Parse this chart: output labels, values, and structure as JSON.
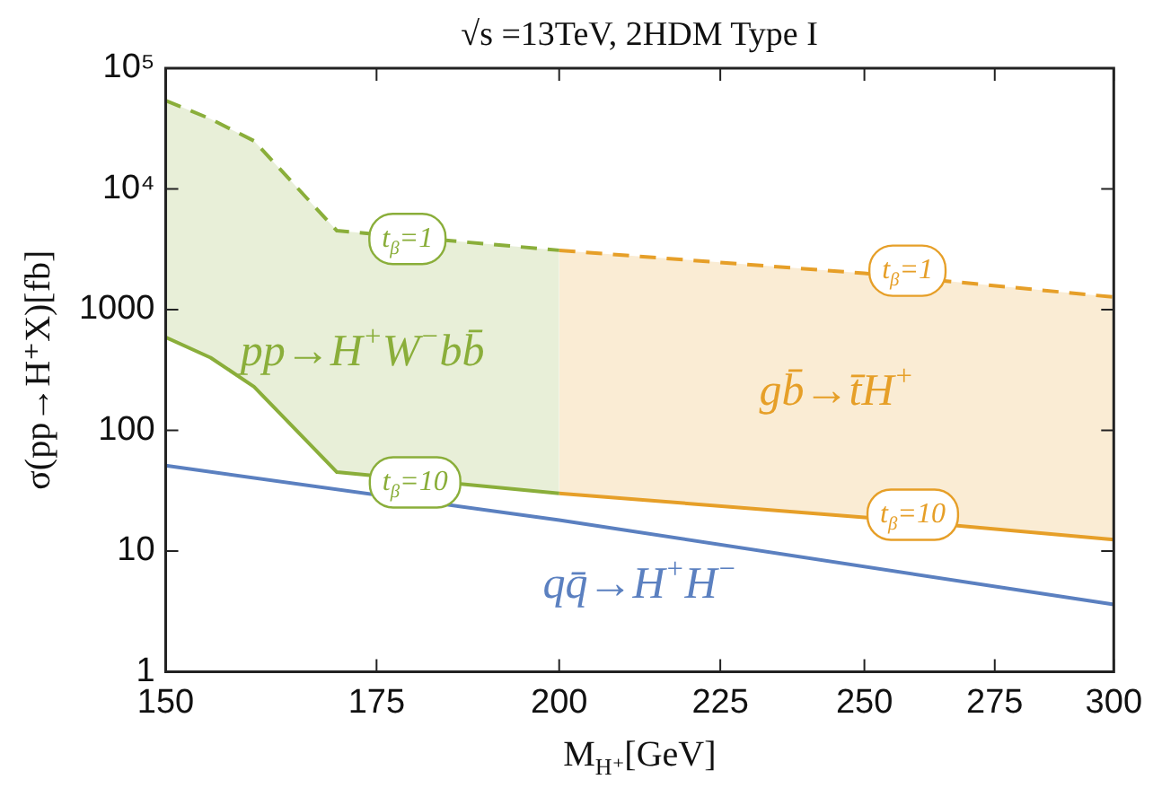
{
  "chart_data": {
    "type": "line",
    "title": "√s =13TeV, 2HDM Type I",
    "xlabel": "M$_{H⁺}$[GeV]",
    "ylabel": "σ(pp→H⁺X)[fb]",
    "log": "xy",
    "grid": false,
    "legend": false,
    "marker": "none",
    "xlim": [
      150,
      300
    ],
    "xticks": [
      150,
      175,
      200,
      225,
      250,
      275,
      300
    ],
    "ylim": [
      1,
      100000
    ],
    "yticks": [
      {
        "value": 100000,
        "label": "10⁵"
      },
      {
        "value": 10000,
        "label": "10⁴"
      },
      1000,
      100,
      10,
      1
    ],
    "series": [
      {
        "name": "pp→H$^{+}$W$^{−}$bb̄",
        "color": "#8aae3a",
        "line_style": "dashed",
        "x": [
          150,
          155,
          160,
          170,
          200
        ],
        "values": [
          54000,
          38000,
          25000,
          4500,
          3100
        ],
        "lower": [
          590,
          400,
          230,
          45,
          30
        ],
        "upper": [
          54000,
          38000,
          25000,
          4500,
          3100
        ]
      },
      {
        "color": "#8aae3a",
        "line_style": "solid",
        "x": [
          150,
          155,
          160,
          170,
          200
        ],
        "values": [
          590,
          400,
          230,
          45,
          30
        ]
      },
      {
        "name": "gb̄→t̄H$^{+}$",
        "color": "#e69f28",
        "line_style": "dashed",
        "x": [
          200,
          250,
          300
        ],
        "values": [
          3100,
          2000,
          1270
        ],
        "lower": [
          30,
          19,
          12.4
        ],
        "upper": [
          3100,
          2000,
          1270
        ]
      },
      {
        "color": "#e69f28",
        "line_style": "solid",
        "x": [
          200,
          250,
          300
        ],
        "values": [
          30,
          19,
          12.4
        ]
      },
      {
        "name": "qq̄→H$^{+}$H$^{−}$",
        "color": "#5b80c0",
        "line_style": "solid",
        "x": [
          150,
          200,
          300
        ],
        "values": [
          51,
          18,
          3.6
        ]
      }
    ],
    "annotations": [
      {
        "text": "t$_{β}$=1",
        "x": 179,
        "y": 3850
      },
      {
        "text": "t$_{β}$=10",
        "x": 180,
        "y": 37
      },
      {
        "text": "t$_{β}$=1",
        "x": 258,
        "y": 2100
      },
      {
        "text": "t$_{β}$=10",
        "x": 259,
        "y": 20
      }
    ]
  }
}
